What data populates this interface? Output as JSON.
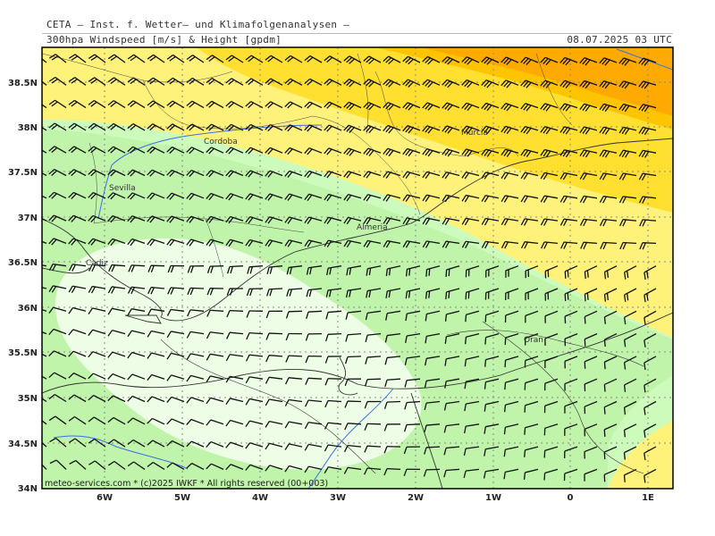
{
  "header": {
    "institute": "CETA – Inst. f. Wetter– und Klimafolgenanalysen –",
    "parameter": "300hpa Windspeed [m/s] & Height [gpdm]",
    "datetime": "08.07.2025 03 UTC"
  },
  "map": {
    "lat_ticks": [
      "38.5N",
      "38N",
      "37.5N",
      "37N",
      "36.5N",
      "36N",
      "35.5N",
      "35N",
      "34.5N",
      "34N"
    ],
    "lon_ticks": [
      "6W",
      "5W",
      "4W",
      "3W",
      "2W",
      "1W",
      "0",
      "1E"
    ],
    "cities": [
      "Cordoba",
      "Murcia",
      "Sevilla",
      "Almeria",
      "Cadiz",
      "Oran"
    ],
    "copyright": "meteo-services.com * (c)2025 IWKF * All rights reserved (00+003)",
    "colors": {
      "band_lightest": "#eefde6",
      "band_light_green": "#ccfbbc",
      "band_green": "#bff4aa",
      "band_light_yellow": "#fff27a",
      "band_yellow": "#ffe030",
      "band_orange": "#ffc400",
      "band_dark_orange": "#ffaa00",
      "coastline": "#333333",
      "river": "#3a6fe8",
      "grid": "#888888",
      "barb": "#111111"
    }
  }
}
